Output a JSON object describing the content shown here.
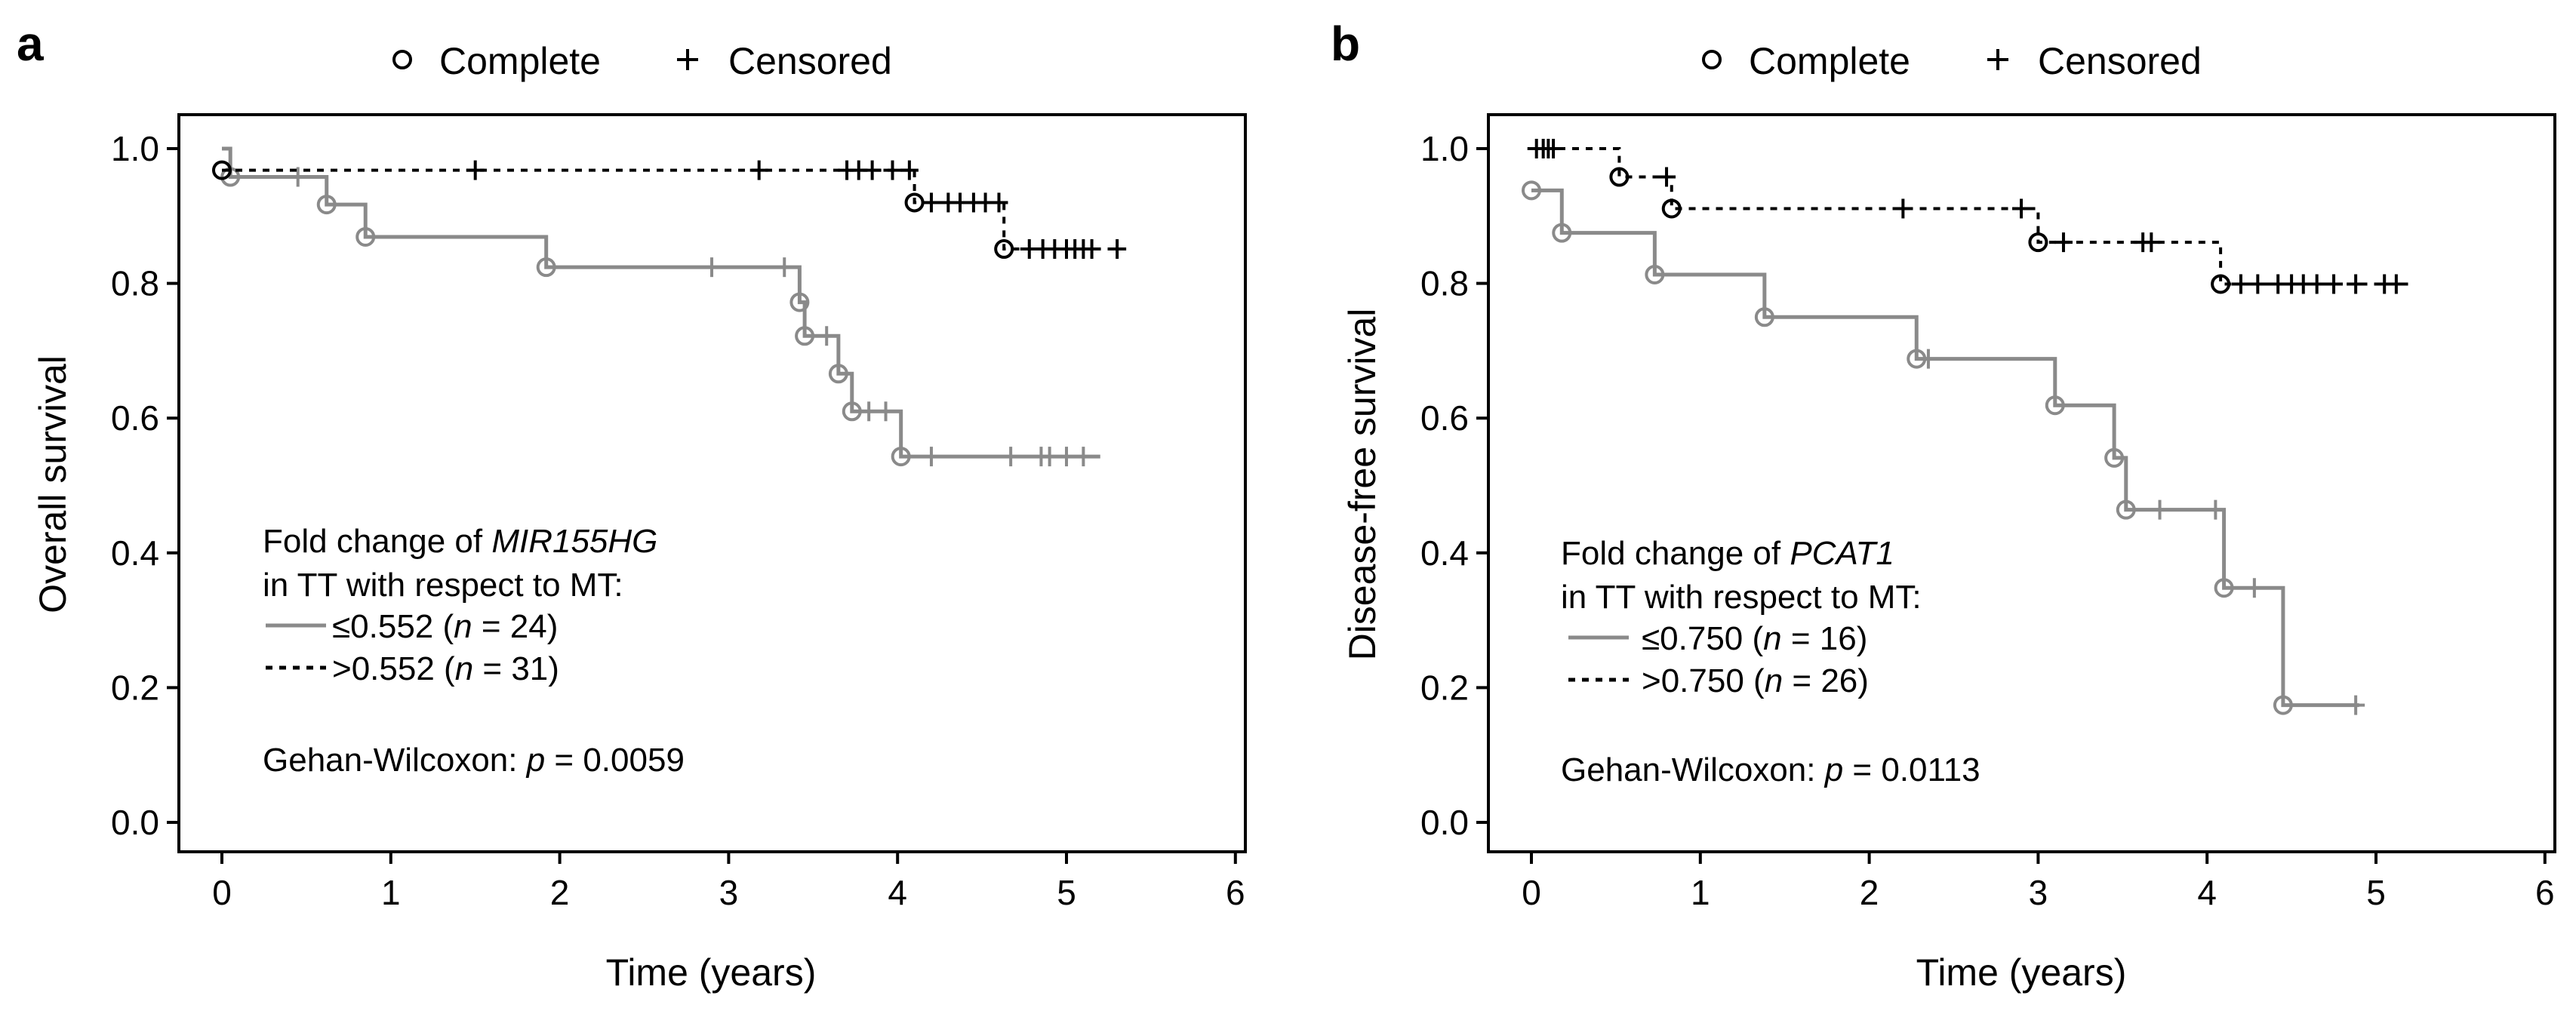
{
  "colors": {
    "solid": "#8a8a8a",
    "dashed": "#000000",
    "axis": "#000000"
  },
  "chart_data": [
    {
      "type": "line",
      "panel": "a",
      "title": "",
      "xlabel": "Time (years)",
      "ylabel": "Overall survival",
      "xlim": [
        0,
        6
      ],
      "ylim": [
        0,
        1.0
      ],
      "x_ticks": [
        "0",
        "1",
        "2",
        "3",
        "4",
        "5",
        "6"
      ],
      "y_ticks": [
        "0.0",
        "0.2",
        "0.4",
        "0.6",
        "0.8",
        "1.0"
      ],
      "marker_legend": {
        "complete": "Complete",
        "censored": "Censored"
      },
      "legend_title": [
        "Fold change of ",
        "MIR155HG",
        "in TT with respect to MT:"
      ],
      "series": [
        {
          "name": "≤0.552 (n = 24)",
          "label_parts": [
            "≤0.552 (",
            "n",
            " = 24)"
          ],
          "style": "solid",
          "steps": [
            [
              0,
              1.0
            ],
            [
              0.05,
              0.958
            ],
            [
              0.62,
              0.917
            ],
            [
              0.85,
              0.869
            ],
            [
              1.92,
              0.824
            ],
            [
              3.42,
              0.772
            ],
            [
              3.45,
              0.722
            ],
            [
              3.65,
              0.666
            ],
            [
              3.73,
              0.61
            ],
            [
              4.02,
              0.543
            ]
          ],
          "end_x": 5.2,
          "complete": [
            [
              0.05,
              0.958
            ],
            [
              0.62,
              0.917
            ],
            [
              0.85,
              0.869
            ],
            [
              1.92,
              0.824
            ],
            [
              3.42,
              0.772
            ],
            [
              3.45,
              0.722
            ],
            [
              3.65,
              0.666
            ],
            [
              3.73,
              0.61
            ],
            [
              4.02,
              0.543
            ]
          ],
          "censored": [
            [
              0.45,
              0.958
            ],
            [
              2.9,
              0.824
            ],
            [
              3.33,
              0.824
            ],
            [
              3.58,
              0.722
            ],
            [
              3.83,
              0.61
            ],
            [
              3.93,
              0.61
            ],
            [
              4.2,
              0.543
            ],
            [
              4.67,
              0.543
            ],
            [
              4.85,
              0.543
            ],
            [
              4.9,
              0.543
            ],
            [
              5.0,
              0.543
            ],
            [
              5.1,
              0.543
            ]
          ]
        },
        {
          "name": ">0.552 (n = 31)",
          "label_parts": [
            ">0.552 (",
            "n",
            " = 31)"
          ],
          "style": "dashed",
          "steps": [
            [
              0,
              0.968
            ],
            [
              4.1,
              0.92
            ],
            [
              4.63,
              0.851
            ]
          ],
          "end_x": 5.33,
          "complete": [
            [
              0.0,
              0.968
            ],
            [
              4.1,
              0.92
            ],
            [
              4.63,
              0.851
            ]
          ],
          "censored": [
            [
              1.5,
              0.968
            ],
            [
              3.18,
              0.968
            ],
            [
              3.7,
              0.968
            ],
            [
              3.77,
              0.968
            ],
            [
              3.85,
              0.968
            ],
            [
              3.97,
              0.968
            ],
            [
              4.07,
              0.968
            ],
            [
              4.2,
              0.92
            ],
            [
              4.3,
              0.92
            ],
            [
              4.37,
              0.92
            ],
            [
              4.45,
              0.92
            ],
            [
              4.52,
              0.92
            ],
            [
              4.6,
              0.92
            ],
            [
              4.78,
              0.851
            ],
            [
              4.86,
              0.851
            ],
            [
              4.93,
              0.851
            ],
            [
              5.0,
              0.851
            ],
            [
              5.05,
              0.851
            ],
            [
              5.1,
              0.851
            ],
            [
              5.15,
              0.851
            ],
            [
              5.3,
              0.851
            ]
          ]
        }
      ],
      "test": {
        "prefix": "Gehan-Wilcoxon: ",
        "p_symbol": "p",
        "value": " = 0.0059"
      }
    },
    {
      "type": "line",
      "panel": "b",
      "title": "",
      "xlabel": "Time (years)",
      "ylabel": "Disease-free survival",
      "xlim": [
        0,
        6
      ],
      "ylim": [
        0,
        1.0
      ],
      "x_ticks": [
        "0",
        "1",
        "2",
        "3",
        "4",
        "5",
        "6"
      ],
      "y_ticks": [
        "0.0",
        "0.2",
        "0.4",
        "0.6",
        "0.8",
        "1.0"
      ],
      "marker_legend": {
        "complete": "Complete",
        "censored": "Censored"
      },
      "legend_title": [
        "Fold change of ",
        "PCAT1",
        "in TT with respect to MT:"
      ],
      "series": [
        {
          "name": "≤0.750 (n = 16)",
          "label_parts": [
            "≤0.750 (",
            "n",
            " = 16)"
          ],
          "style": "solid",
          "steps": [
            [
              0,
              0.938
            ],
            [
              0.18,
              0.875
            ],
            [
              0.73,
              0.813
            ],
            [
              1.38,
              0.75
            ],
            [
              2.28,
              0.688
            ],
            [
              3.1,
              0.619
            ],
            [
              3.45,
              0.541
            ],
            [
              3.52,
              0.464
            ],
            [
              4.1,
              0.348
            ],
            [
              4.45,
              0.174
            ]
          ],
          "end_x": 4.9,
          "complete": [
            [
              0.0,
              0.938
            ],
            [
              0.18,
              0.875
            ],
            [
              0.73,
              0.813
            ],
            [
              1.38,
              0.75
            ],
            [
              2.28,
              0.688
            ],
            [
              3.1,
              0.619
            ],
            [
              3.45,
              0.541
            ],
            [
              3.52,
              0.464
            ],
            [
              4.1,
              0.348
            ],
            [
              4.45,
              0.174
            ]
          ],
          "censored": [
            [
              2.35,
              0.688
            ],
            [
              3.72,
              0.464
            ],
            [
              4.05,
              0.464
            ],
            [
              4.28,
              0.348
            ],
            [
              4.88,
              0.174
            ]
          ]
        },
        {
          "name": ">0.750 (n = 26)",
          "label_parts": [
            ">0.750 (",
            "n",
            " = 26)"
          ],
          "style": "dashed",
          "steps": [
            [
              0,
              1.0
            ],
            [
              0.52,
              0.958
            ],
            [
              0.83,
              0.911
            ],
            [
              3.0,
              0.861
            ],
            [
              4.08,
              0.799
            ]
          ],
          "end_x": 5.2,
          "complete": [
            [
              0.52,
              0.958
            ],
            [
              0.83,
              0.911
            ],
            [
              3.0,
              0.861
            ],
            [
              4.08,
              0.799
            ]
          ],
          "censored": [
            [
              0.03,
              1.0
            ],
            [
              0.07,
              1.0
            ],
            [
              0.1,
              1.0
            ],
            [
              0.13,
              1.0
            ],
            [
              0.8,
              0.958
            ],
            [
              2.2,
              0.911
            ],
            [
              2.9,
              0.911
            ],
            [
              3.15,
              0.861
            ],
            [
              3.62,
              0.861
            ],
            [
              3.67,
              0.861
            ],
            [
              4.2,
              0.799
            ],
            [
              4.3,
              0.799
            ],
            [
              4.42,
              0.799
            ],
            [
              4.5,
              0.799
            ],
            [
              4.57,
              0.799
            ],
            [
              4.65,
              0.799
            ],
            [
              4.75,
              0.799
            ],
            [
              4.88,
              0.799
            ],
            [
              5.05,
              0.799
            ],
            [
              5.12,
              0.799
            ]
          ]
        }
      ],
      "test": {
        "prefix": "Gehan-Wilcoxon: ",
        "p_symbol": "p",
        "value": " = 0.0113"
      }
    }
  ]
}
